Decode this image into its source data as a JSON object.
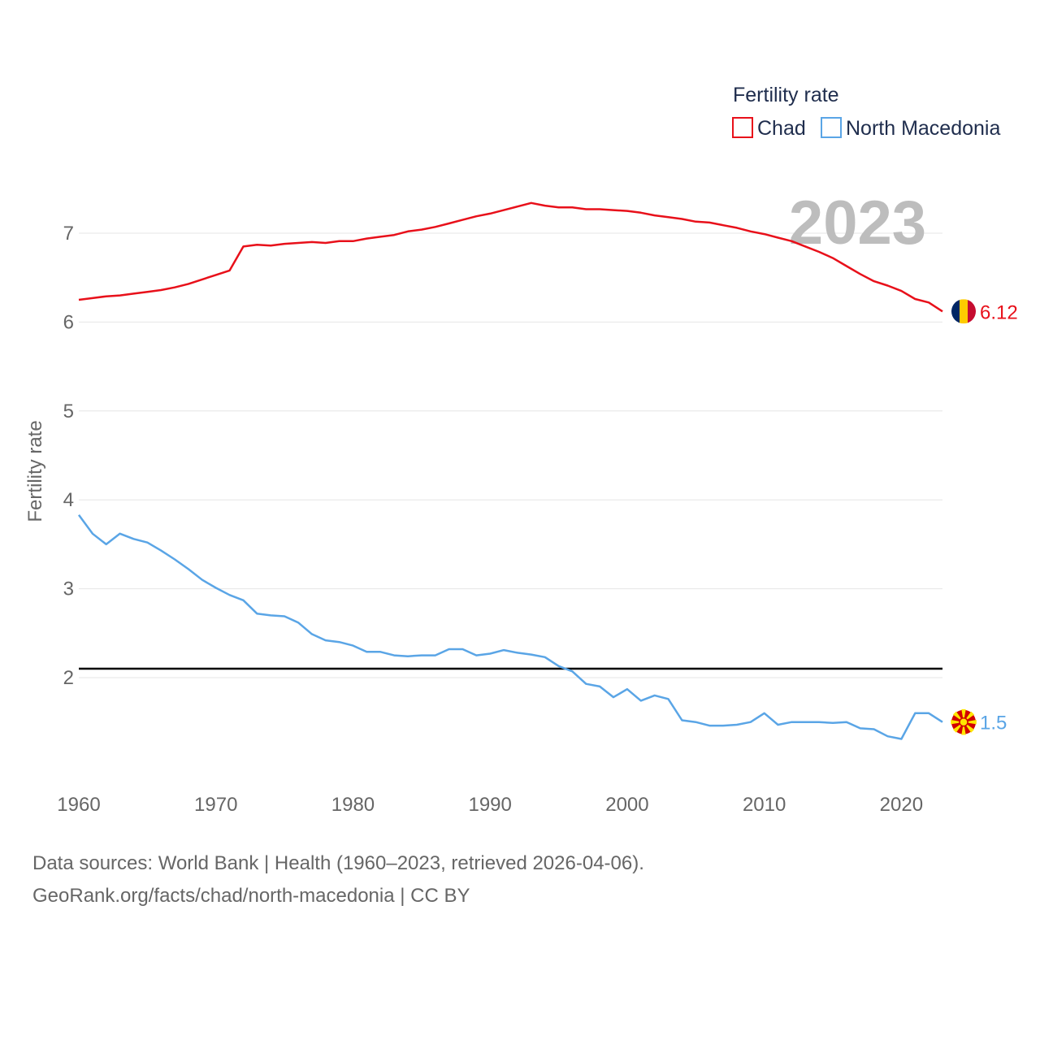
{
  "chart_data": {
    "type": "line",
    "legend": {
      "title": "Fertility rate",
      "position": "top-right"
    },
    "ylabel": "Fertility rate",
    "xlabel": "",
    "year_label": "2023",
    "xlim": [
      1960,
      2023
    ],
    "ylim": [
      1,
      7.7
    ],
    "x_ticks": [
      1960,
      1970,
      1980,
      1990,
      2000,
      2010,
      2020
    ],
    "y_ticks": [
      2,
      3,
      4,
      5,
      6,
      7
    ],
    "reference_line": {
      "value": 2.1
    },
    "x": [
      1960,
      1961,
      1962,
      1963,
      1964,
      1965,
      1966,
      1967,
      1968,
      1969,
      1970,
      1971,
      1972,
      1973,
      1974,
      1975,
      1976,
      1977,
      1978,
      1979,
      1980,
      1981,
      1982,
      1983,
      1984,
      1985,
      1986,
      1987,
      1988,
      1989,
      1990,
      1991,
      1992,
      1993,
      1994,
      1995,
      1996,
      1997,
      1998,
      1999,
      2000,
      2001,
      2002,
      2003,
      2004,
      2005,
      2006,
      2007,
      2008,
      2009,
      2010,
      2011,
      2012,
      2013,
      2014,
      2015,
      2016,
      2017,
      2018,
      2019,
      2020,
      2021,
      2022,
      2023
    ],
    "series": [
      {
        "name": "Chad",
        "color": "#e8101a",
        "end_label": "6.12",
        "values": [
          6.25,
          6.27,
          6.29,
          6.3,
          6.32,
          6.34,
          6.36,
          6.39,
          6.43,
          6.48,
          6.53,
          6.58,
          6.85,
          6.87,
          6.86,
          6.88,
          6.89,
          6.9,
          6.89,
          6.91,
          6.91,
          6.94,
          6.96,
          6.98,
          7.02,
          7.04,
          7.07,
          7.11,
          7.15,
          7.19,
          7.22,
          7.26,
          7.3,
          7.34,
          7.31,
          7.29,
          7.29,
          7.27,
          7.27,
          7.26,
          7.25,
          7.23,
          7.2,
          7.18,
          7.16,
          7.13,
          7.12,
          7.09,
          7.06,
          7.02,
          6.99,
          6.95,
          6.91,
          6.85,
          6.79,
          6.72,
          6.63,
          6.54,
          6.46,
          6.41,
          6.35,
          6.26,
          6.22,
          6.12
        ]
      },
      {
        "name": "North Macedonia",
        "color": "#5aa5e6",
        "end_label": "1.5",
        "values": [
          3.83,
          3.62,
          3.5,
          3.62,
          3.56,
          3.52,
          3.43,
          3.33,
          3.22,
          3.1,
          3.01,
          2.93,
          2.87,
          2.72,
          2.7,
          2.69,
          2.62,
          2.49,
          2.42,
          2.4,
          2.36,
          2.29,
          2.29,
          2.25,
          2.24,
          2.25,
          2.25,
          2.32,
          2.32,
          2.25,
          2.27,
          2.31,
          2.28,
          2.26,
          2.23,
          2.13,
          2.07,
          1.93,
          1.9,
          1.78,
          1.87,
          1.74,
          1.8,
          1.76,
          1.52,
          1.5,
          1.46,
          1.46,
          1.47,
          1.5,
          1.6,
          1.47,
          1.5,
          1.5,
          1.5,
          1.49,
          1.5,
          1.43,
          1.42,
          1.34,
          1.31,
          1.6,
          1.6,
          1.5
        ]
      }
    ]
  },
  "footer": {
    "line1": "Data sources: World Bank | Health (1960–2023, retrieved 2026-04-06).",
    "line2": "GeoRank.org/facts/chad/north-macedonia | CC BY"
  }
}
